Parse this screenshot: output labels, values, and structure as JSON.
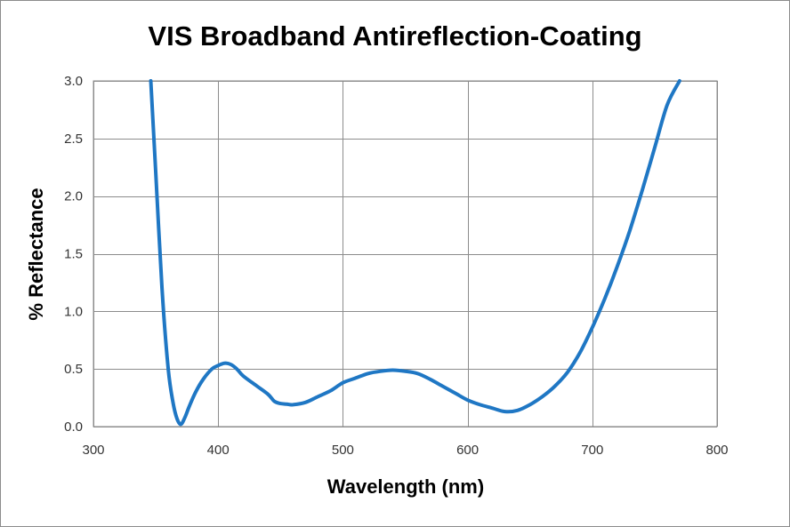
{
  "chart_data": {
    "type": "line",
    "title": "VIS Broadband Antireflection-Coating",
    "xlabel": "Wavelength (nm)",
    "ylabel": "% Reflectance",
    "xlim": [
      300,
      800
    ],
    "ylim": [
      0,
      3.0
    ],
    "x_ticks": [
      300,
      400,
      500,
      600,
      700,
      800
    ],
    "y_ticks": [
      0.0,
      0.5,
      1.0,
      1.5,
      2.0,
      2.5,
      3.0
    ],
    "x_tick_labels": [
      "300",
      "400",
      "500",
      "600",
      "700",
      "800"
    ],
    "y_tick_labels": [
      "0.0",
      "0.5",
      "1.0",
      "1.5",
      "2.0",
      "2.5",
      "3.0"
    ],
    "grid": true,
    "line_color": "#1f77c4",
    "series": [
      {
        "x": [
          346,
          350,
          355,
          360,
          364,
          367,
          370,
          373,
          377,
          382,
          388,
          395,
          400,
          405,
          410,
          415,
          420,
          430,
          440,
          445,
          450,
          455,
          460,
          470,
          480,
          490,
          500,
          510,
          520,
          530,
          540,
          550,
          560,
          570,
          580,
          590,
          600,
          610,
          620,
          630,
          640,
          650,
          660,
          670,
          680,
          690,
          700,
          710,
          720,
          730,
          740,
          750,
          760,
          770
        ],
        "y": [
          3.0,
          2.2,
          1.2,
          0.5,
          0.2,
          0.07,
          0.02,
          0.07,
          0.18,
          0.3,
          0.41,
          0.5,
          0.53,
          0.55,
          0.54,
          0.5,
          0.44,
          0.36,
          0.28,
          0.22,
          0.2,
          0.195,
          0.19,
          0.21,
          0.26,
          0.31,
          0.38,
          0.42,
          0.46,
          0.48,
          0.49,
          0.48,
          0.46,
          0.41,
          0.35,
          0.29,
          0.23,
          0.19,
          0.16,
          0.13,
          0.14,
          0.19,
          0.26,
          0.35,
          0.47,
          0.64,
          0.86,
          1.11,
          1.39,
          1.7,
          2.05,
          2.42,
          2.79,
          3.0
        ]
      }
    ]
  }
}
